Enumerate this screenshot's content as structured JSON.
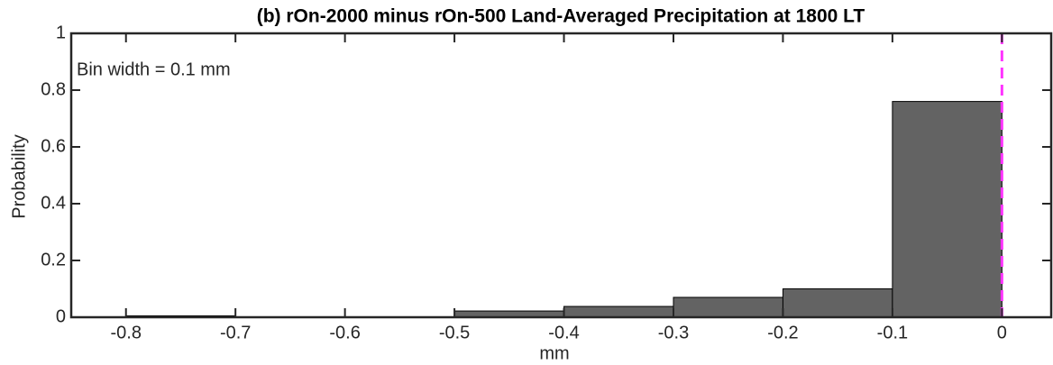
{
  "chart_data": {
    "type": "histogram",
    "title": "(b) rOn-2000 minus rOn-500 Land-Averaged Precipitation at 1800 LT",
    "xlabel": "mm",
    "ylabel": "Probability",
    "annotation": "Bin width = 0.1 mm",
    "bins": [
      -0.8,
      -0.7,
      -0.6,
      -0.5,
      -0.4,
      -0.3,
      -0.2,
      -0.1,
      0
    ],
    "values": [
      0.005,
      0,
      0,
      0.022,
      0.038,
      0.07,
      0.1,
      0.76
    ],
    "color": "#636363",
    "xlim": [
      -0.85,
      0.045
    ],
    "xticks": [
      -0.8,
      -0.7,
      -0.6,
      -0.5,
      -0.4,
      -0.3,
      -0.2,
      -0.1,
      0
    ],
    "ylim": [
      0,
      1
    ],
    "yticks": [
      0,
      0.2,
      0.4,
      0.6,
      0.8,
      1
    ],
    "vline": 0,
    "vline_color": "#ff33ff"
  }
}
